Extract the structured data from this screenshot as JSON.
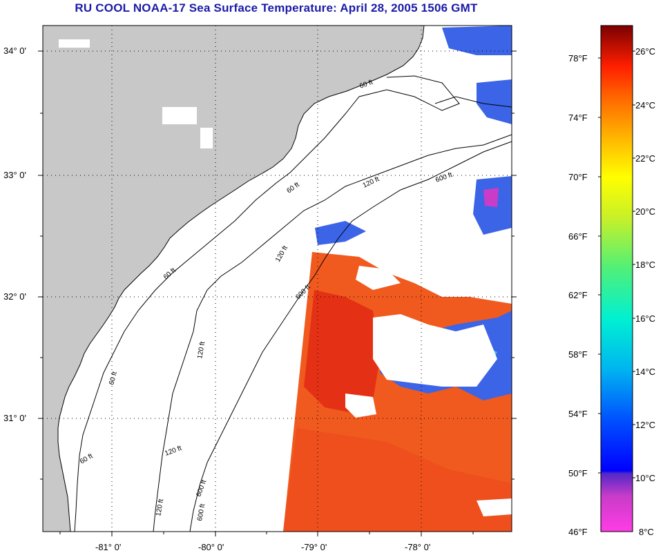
{
  "title": "RU COOL  NOAA-17  Sea Surface Temperature:  April 28, 2005 1506 GMT",
  "latitude_labels": [
    "34° 0'",
    "33° 0'",
    "32° 0'",
    "31° 0'"
  ],
  "longitude_labels": [
    "-81° 0'",
    "-80° 0'",
    "-79° 0'",
    "-78° 0'"
  ],
  "isobath_labels": [
    "60 ft",
    "120 ft",
    "600 ft",
    "60 ft",
    "120 ft",
    "600 ft",
    "60 ft",
    "120 ft",
    "600 ft",
    "60 ft",
    "120 ft",
    "600 ft",
    "120 ft",
    "60 ft"
  ],
  "colorbar": {
    "fahrenheit_labels": [
      "78°F",
      "74°F",
      "70°F",
      "66°F",
      "62°F",
      "58°F",
      "54°F",
      "50°F",
      "46°F"
    ],
    "celsius_labels": [
      "26°C",
      "24°C",
      "22°C",
      "20°C",
      "18°C",
      "16°C",
      "14°C",
      "12°C",
      "10°C",
      "8°C"
    ]
  },
  "colors": {
    "land": "#c8c8c8",
    "no_data": "#ffffff",
    "title": "#1a1aa8",
    "sst_warm": "#f0501e",
    "sst_hot": "#e02a14",
    "sst_cool": "#3c64e6"
  }
}
